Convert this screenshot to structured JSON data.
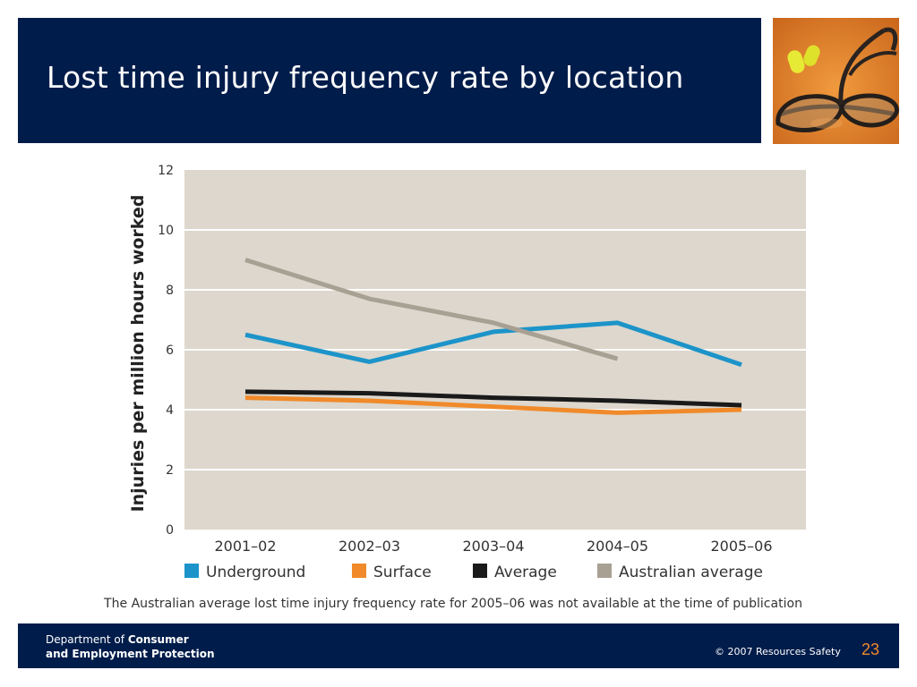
{
  "slide": {
    "title": "Lost time injury frequency rate by location",
    "photo_icon": "safety-glasses-and-earplugs-photo"
  },
  "footer": {
    "dept_prefix": "Department of ",
    "dept_bold_1": "Consumer",
    "dept_bold_2": "and Employment Protection",
    "copyright": "© 2007 Resources Safety",
    "page_number": "23"
  },
  "colors": {
    "header": "#001c4a",
    "plot_bg": "#ddd7cd",
    "underground": "#1c94c9",
    "surface": "#f08a2a",
    "average": "#1a1a1a",
    "australian_average": "#a8a092",
    "page_number": "#f08a2a"
  },
  "chart_data": {
    "type": "line",
    "ylabel": "Injuries per million hours worked",
    "xlabel": "",
    "ylim": [
      0,
      12
    ],
    "yticks": [
      0,
      2,
      4,
      6,
      8,
      10,
      12
    ],
    "grid": "horizontal",
    "legend_position": "bottom",
    "categories": [
      "2001–02",
      "2002–03",
      "2003–04",
      "2004–05",
      "2005–06"
    ],
    "series": [
      {
        "name": "Underground",
        "color": "#1c94c9",
        "values": [
          6.5,
          5.6,
          6.6,
          6.9,
          5.5
        ]
      },
      {
        "name": "Surface",
        "color": "#f08a2a",
        "values": [
          4.4,
          4.3,
          4.1,
          3.9,
          4.0
        ]
      },
      {
        "name": "Average",
        "color": "#1a1a1a",
        "values": [
          4.6,
          4.55,
          4.4,
          4.3,
          4.15
        ]
      },
      {
        "name": "Australian average",
        "color": "#a8a092",
        "values": [
          9.0,
          7.7,
          6.9,
          5.7,
          null
        ]
      }
    ],
    "note": "The Australian average lost time injury frequency rate for 2005–06 was not available at the time of publication"
  }
}
